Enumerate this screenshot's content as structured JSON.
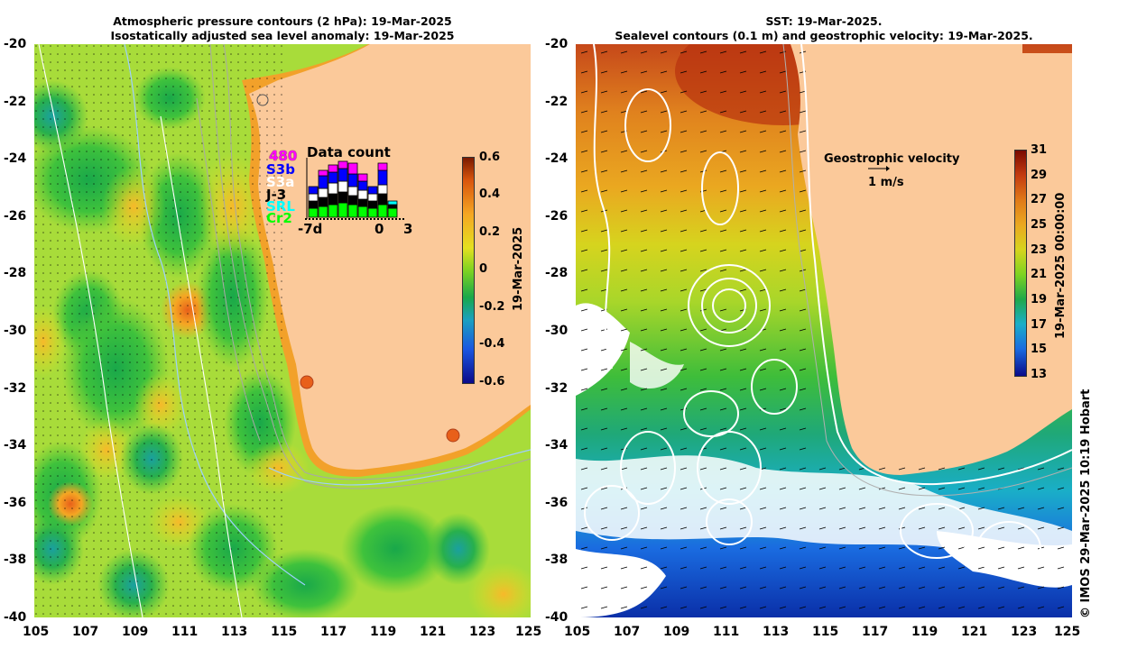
{
  "left_panel": {
    "title_line1": "Atmospheric pressure contours (2 hPa): 19-Mar-2025",
    "title_line2": "Isostatically adjusted sea level anomaly: 19-Mar-2025",
    "colorbar": {
      "label": "19-Mar-2025",
      "ticks": [
        "0.6",
        "0.4",
        "0.2",
        "0",
        "-0.2",
        "-0.4",
        "-0.6"
      ],
      "range": [
        -0.6,
        0.6
      ]
    },
    "inset": {
      "title": "Data count",
      "satellites": [
        {
          "name": "480",
          "color": "#ff00ff"
        },
        {
          "name": "S3b",
          "color": "#0000ff"
        },
        {
          "name": "S3a",
          "color": "#ffffff"
        },
        {
          "name": "J-3",
          "color": "#000000"
        },
        {
          "name": "SRL",
          "color": "#00ffff"
        },
        {
          "name": "Cr2",
          "color": "#00ff00"
        }
      ],
      "xticks": [
        "-7d",
        "0",
        "3"
      ]
    }
  },
  "right_panel": {
    "title_line1": "SST: 19-Mar-2025.",
    "title_line2": "Sealevel contours (0.1 m) and geostrophic velocity: 19-Mar-2025.",
    "legend_title": "Geostrophic velocity",
    "legend_scale": "1 m/s",
    "colorbar": {
      "label": "19-Mar-2025 00:00:00",
      "ticks": [
        "31",
        "29",
        "27",
        "25",
        "23",
        "21",
        "19",
        "17",
        "15",
        "13"
      ],
      "range": [
        13,
        31
      ]
    }
  },
  "axes": {
    "lat_ticks": [
      "-20",
      "-22",
      "-24",
      "-26",
      "-28",
      "-30",
      "-32",
      "-34",
      "-36",
      "-38",
      "-40"
    ],
    "lon_ticks": [
      "105",
      "107",
      "109",
      "111",
      "113",
      "115",
      "117",
      "119",
      "121",
      "123",
      "125"
    ]
  },
  "credit": "© IMOS 29-Mar-2025 10:19 Hobart",
  "colors": {
    "land": "#fbc99a",
    "ocean_left": "#a6e23a",
    "ocean_right_warm": "#c43b10"
  }
}
